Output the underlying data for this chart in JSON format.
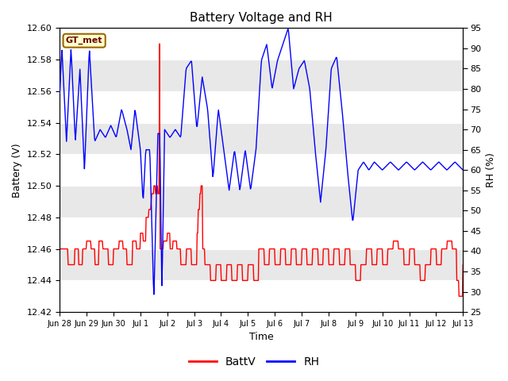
{
  "title": "Battery Voltage and RH",
  "xlabel": "Time",
  "ylabel_left": "Battery (V)",
  "ylabel_right": "RH (%)",
  "ylim_left": [
    12.42,
    12.6
  ],
  "ylim_right": [
    25,
    95
  ],
  "yticks_left": [
    12.42,
    12.44,
    12.46,
    12.48,
    12.5,
    12.52,
    12.54,
    12.56,
    12.58,
    12.6
  ],
  "yticks_right": [
    25,
    30,
    35,
    40,
    45,
    50,
    55,
    60,
    65,
    70,
    75,
    80,
    85,
    90,
    95
  ],
  "xtick_labels": [
    "Jun 28",
    "Jun 29",
    "Jun 30",
    "Jul 1",
    "Jul 2",
    "Jul 3",
    "Jul 4",
    "Jul 5",
    "Jul 6",
    "Jul 7",
    "Jul 8",
    "Jul 9",
    "Jul 10",
    "Jul 11",
    "Jul 12",
    "Jul 13"
  ],
  "legend_label_batt": "BattV",
  "legend_label_rh": "RH",
  "color_batt": "#ff0000",
  "color_rh": "#0000ff",
  "plot_bg_color": "#ffffff",
  "ax_bg_color": "#d8d8d8",
  "band_color_light": "#e8e8e8",
  "band_color_white": "#ffffff",
  "watermark_text": "GT_met",
  "watermark_bg": "#ffffcc",
  "watermark_border": "#996600",
  "watermark_text_color": "#660000"
}
